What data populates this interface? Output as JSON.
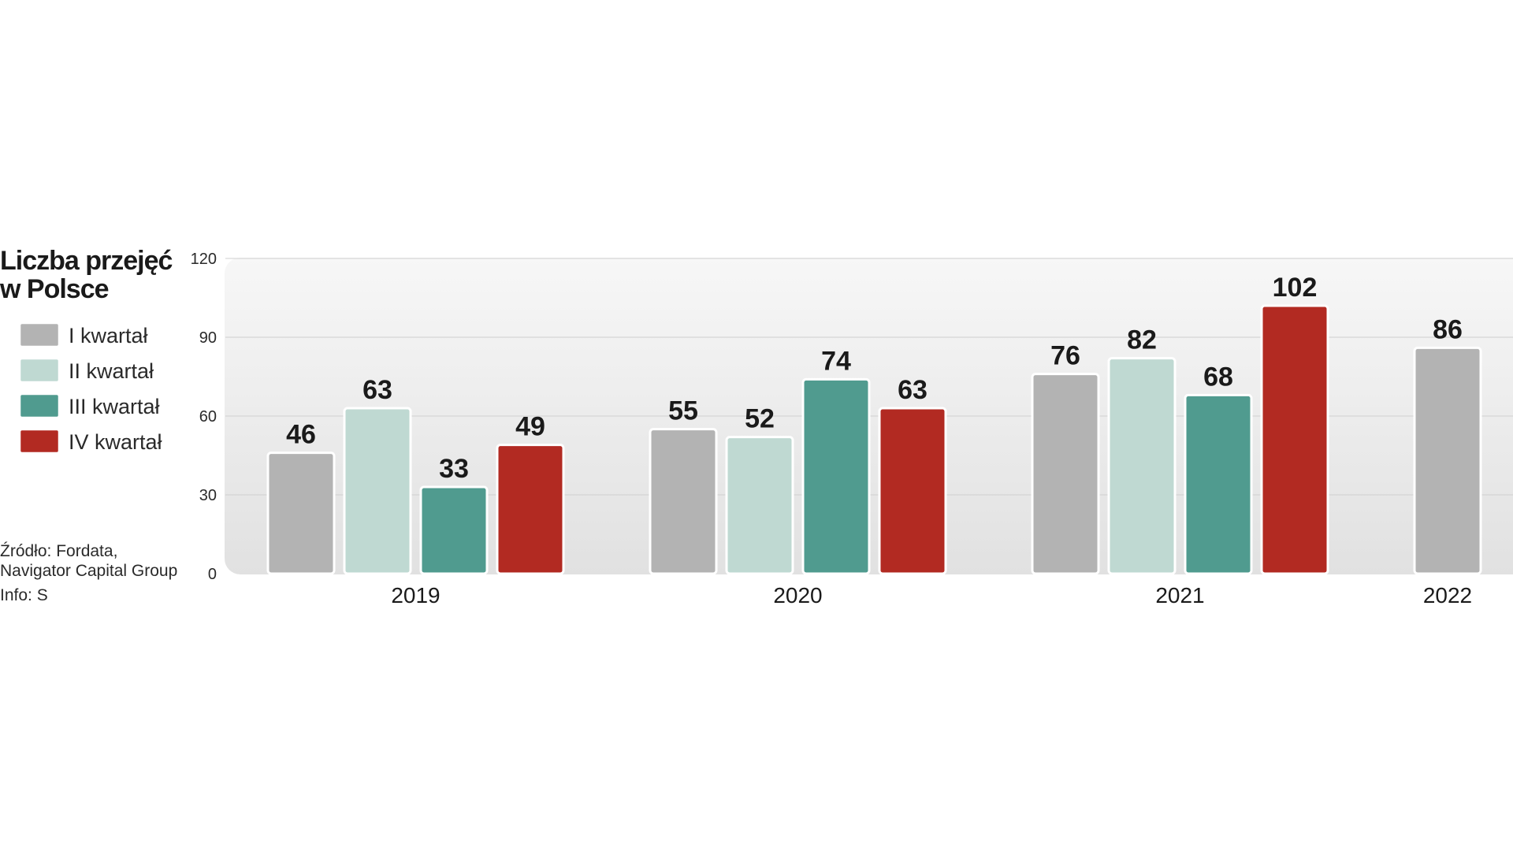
{
  "chart_data": {
    "type": "bar",
    "title": [
      "Liczba przejęć",
      "w Polsce"
    ],
    "categories": [
      "2019",
      "2020",
      "2021",
      "2022"
    ],
    "series": [
      {
        "name": "I kwartał",
        "color": "#b3b3b3",
        "values": [
          46,
          55,
          76,
          86
        ]
      },
      {
        "name": "II kwartał",
        "color": "#bfd9d2",
        "values": [
          63,
          52,
          82,
          null
        ]
      },
      {
        "name": "III kwartał",
        "color": "#509b8f",
        "values": [
          33,
          74,
          68,
          null
        ]
      },
      {
        "name": "IV kwartał",
        "color": "#b22a22",
        "values": [
          49,
          63,
          102,
          null
        ]
      }
    ],
    "yticks": [
      0,
      30,
      60,
      90,
      120
    ],
    "ylim": [
      0,
      120
    ],
    "grid": true,
    "legend": "left",
    "source": [
      "Źródło: Fordata,",
      "Navigator Capital Group",
      "Info: S"
    ]
  }
}
